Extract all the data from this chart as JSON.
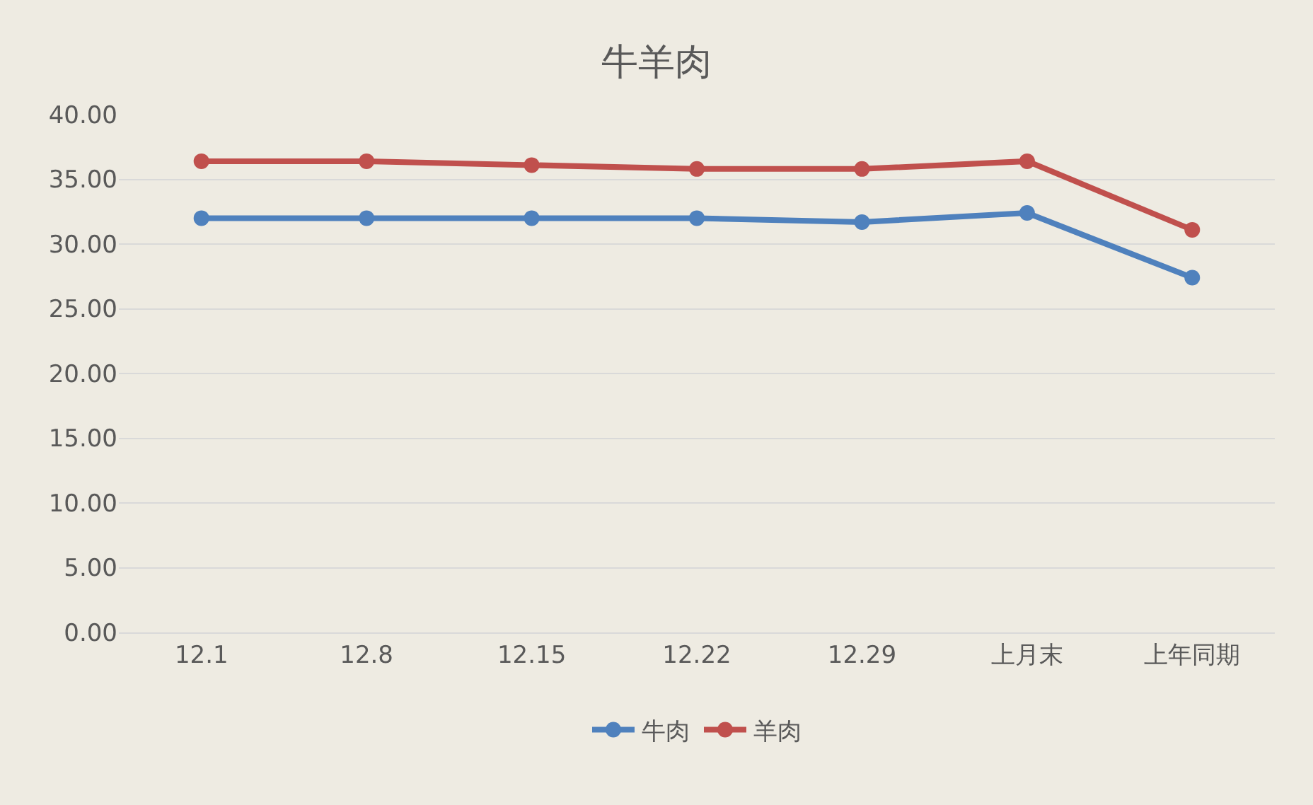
{
  "chart_data": {
    "type": "line",
    "title": "牛羊肉",
    "categories": [
      "12.1",
      "12.8",
      "12.15",
      "12.22",
      "12.29",
      "上月末",
      "上年同期"
    ],
    "series": [
      {
        "name": "牛肉",
        "color": "#4f81bd",
        "values": [
          32.0,
          32.0,
          32.0,
          32.0,
          31.7,
          32.4,
          27.4
        ]
      },
      {
        "name": "羊肉",
        "color": "#c0504d",
        "values": [
          36.4,
          36.4,
          36.1,
          35.8,
          35.8,
          36.4,
          31.1
        ]
      }
    ],
    "ylim": [
      0,
      40
    ],
    "yticks": [
      {
        "value": 0,
        "label": "0.00"
      },
      {
        "value": 5,
        "label": "5.00"
      },
      {
        "value": 10,
        "label": "10.00"
      },
      {
        "value": 15,
        "label": "15.00"
      },
      {
        "value": 20,
        "label": "20.00"
      },
      {
        "value": 25,
        "label": "25.00"
      },
      {
        "value": 30,
        "label": "30.00"
      },
      {
        "value": 35,
        "label": "35.00"
      },
      {
        "value": 40,
        "label": "40.00"
      }
    ],
    "grid": "y",
    "legend": "bottom",
    "marker": "circle",
    "line_style": "solid"
  }
}
